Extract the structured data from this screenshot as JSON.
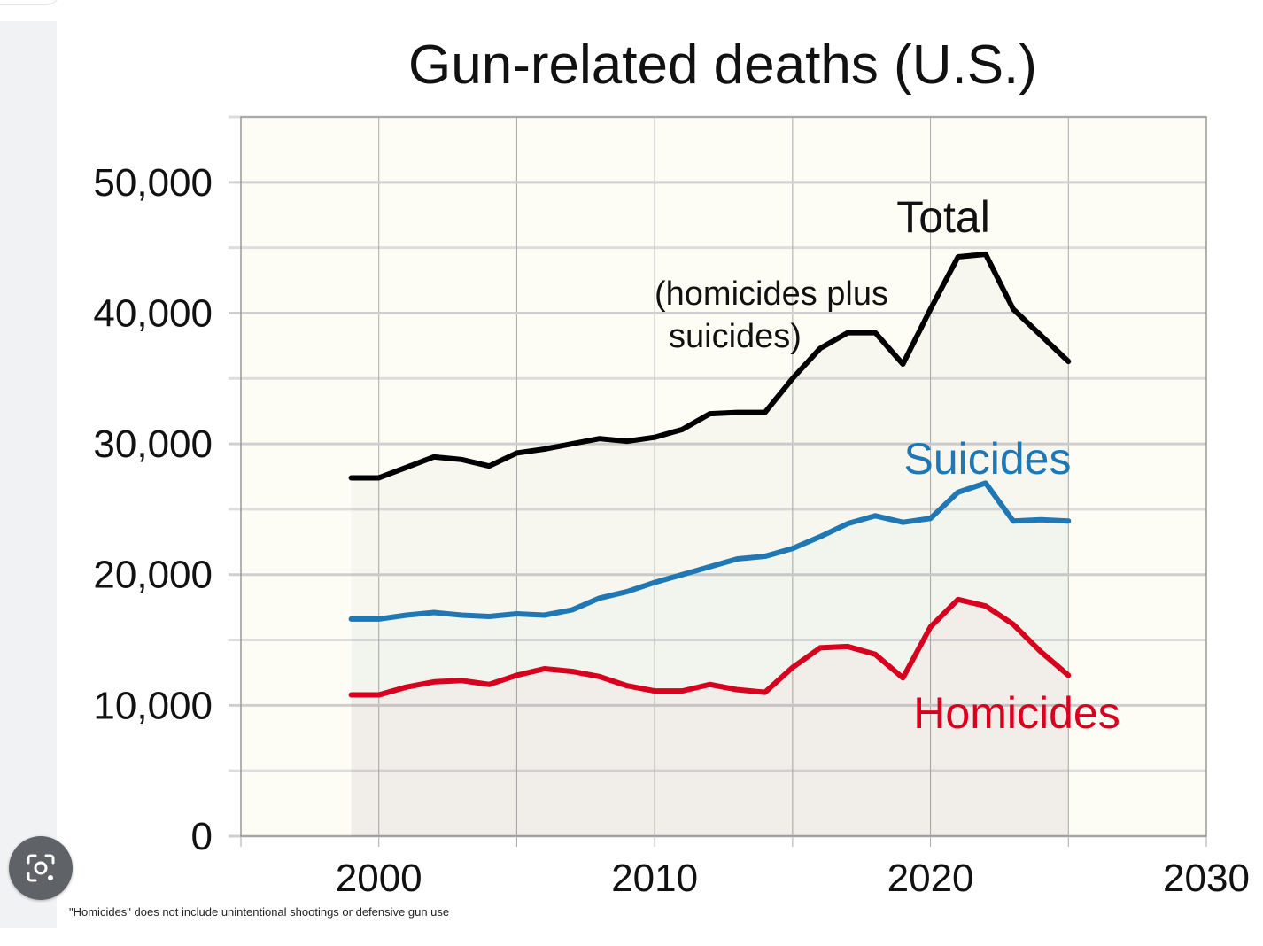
{
  "chart_data": {
    "type": "line",
    "title": "Gun-related deaths (U.S.)",
    "xlabel": "",
    "ylabel": "",
    "xlim": [
      1995,
      2030
    ],
    "ylim": [
      0,
      55000
    ],
    "x_ticks": [
      2000,
      2010,
      2020,
      2030
    ],
    "y_ticks": [
      0,
      10000,
      20000,
      30000,
      40000,
      50000
    ],
    "y_tick_labels": [
      "0",
      "10,000",
      "20,000",
      "30,000",
      "40,000",
      "50,000"
    ],
    "x": [
      1999,
      2000,
      2001,
      2002,
      2003,
      2004,
      2005,
      2006,
      2007,
      2008,
      2009,
      2010,
      2011,
      2012,
      2013,
      2014,
      2015,
      2016,
      2017,
      2018,
      2019,
      2020,
      2021,
      2022,
      2023,
      2024,
      2025
    ],
    "series": [
      {
        "name": "Total",
        "color": "#000000",
        "label": "Total",
        "sublabel_line1": "(homicides plus",
        "sublabel_line2": "suicides)",
        "values": [
          27400,
          27400,
          28200,
          29000,
          28800,
          28300,
          29300,
          29600,
          30000,
          30400,
          30200,
          30500,
          31100,
          32300,
          32400,
          32400,
          35000,
          37300,
          38500,
          38500,
          36100,
          40300,
          44300,
          44500,
          40300,
          38300,
          36300
        ]
      },
      {
        "name": "Suicides",
        "color": "#1f77b4",
        "label": "Suicides",
        "values": [
          16600,
          16600,
          16900,
          17100,
          16900,
          16800,
          17000,
          16900,
          17300,
          18200,
          18700,
          19400,
          20000,
          20600,
          21200,
          21400,
          22000,
          22900,
          23900,
          24500,
          24000,
          24300,
          26300,
          27000,
          24100,
          24200,
          24100
        ]
      },
      {
        "name": "Homicides",
        "color": "#d7001f",
        "label": "Homicides",
        "values": [
          10800,
          10800,
          11400,
          11800,
          11900,
          11600,
          12300,
          12800,
          12600,
          12200,
          11500,
          11100,
          11100,
          11600,
          11200,
          11000,
          12900,
          14400,
          14500,
          13900,
          12100,
          16000,
          18100,
          17600,
          16200,
          14100,
          12300
        ]
      }
    ],
    "footnote": "\"Homicides\" does not include unintentional shootings or defensive gun use"
  },
  "icons": {
    "lens": "camera-search-icon"
  }
}
